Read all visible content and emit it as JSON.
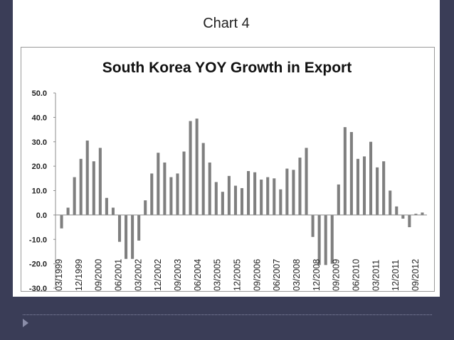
{
  "slide": {
    "title": "Chart 4"
  },
  "chart_data": {
    "type": "bar",
    "title": "South Korea YOY Growth in Export",
    "xlabel": "",
    "ylabel": "",
    "ylim": [
      -30,
      50
    ],
    "yticks": [
      -30,
      -20,
      -10,
      0,
      10,
      20,
      30,
      40,
      50
    ],
    "ytick_labels": [
      "-30.0",
      "-20.0",
      "-10.0",
      "0.0",
      "10.0",
      "20.0",
      "30.0",
      "40.0",
      "50.0"
    ],
    "grid": false,
    "bar_color": "#7f7f7f",
    "x_tick_labels": [
      "03/1999",
      "12/1999",
      "09/2000",
      "06/2001",
      "03/2002",
      "12/2002",
      "09/2003",
      "06/2004",
      "03/2005",
      "12/2005",
      "09/2006",
      "06/2007",
      "03/2008",
      "12/2008",
      "09/2009",
      "06/2010",
      "03/2011",
      "12/2011",
      "09/2012"
    ],
    "values": [
      -5.5,
      3.0,
      15.5,
      23.0,
      30.5,
      22.0,
      27.5,
      7.0,
      3.0,
      -11.0,
      -18.0,
      -18.0,
      -10.5,
      6.0,
      17.0,
      25.5,
      21.5,
      15.5,
      17.0,
      26.0,
      38.5,
      39.5,
      29.5,
      21.5,
      13.5,
      9.5,
      16.0,
      12.0,
      11.0,
      18.0,
      17.5,
      14.5,
      15.5,
      15.0,
      10.5,
      19.0,
      18.5,
      23.5,
      27.5,
      -9.0,
      -20.5,
      -20.5,
      -20.0,
      12.5,
      36.0,
      34.0,
      23.0,
      24.0,
      30.0,
      19.5,
      22.0,
      10.0,
      3.5,
      -1.5,
      -5.0,
      0.5,
      1.0
    ]
  }
}
